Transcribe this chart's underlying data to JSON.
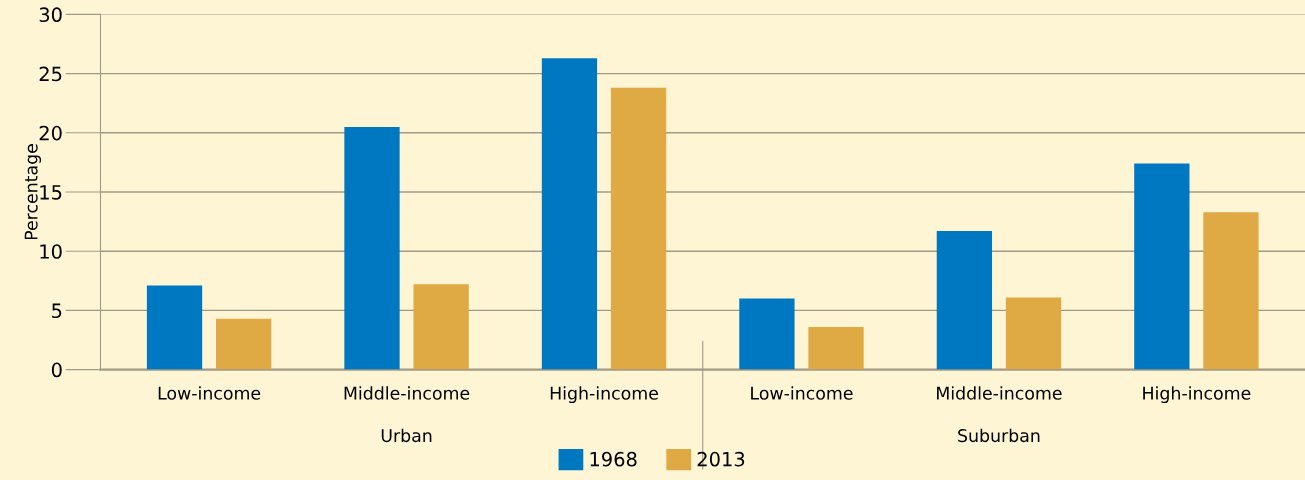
{
  "chart_data": {
    "type": "bar",
    "ylabel": "Percentage",
    "categories": [
      "Low-income",
      "Middle-income",
      "High-income",
      "Low-income",
      "Middle-income",
      "High-income"
    ],
    "series": [
      {
        "name": "1968",
        "color": "#0078c1",
        "values": [
          7.1,
          20.5,
          26.3,
          6.0,
          11.7,
          17.4
        ]
      },
      {
        "name": "2013",
        "color": "#dfa944",
        "values": [
          4.3,
          7.2,
          23.8,
          3.6,
          6.1,
          13.3
        ]
      }
    ],
    "annotations": [
      "Urban",
      "Suburban"
    ],
    "ylim": [
      0,
      30
    ],
    "yticks": [
      0,
      5,
      10,
      15,
      20,
      25,
      30
    ],
    "grid": "y",
    "legend": "bottom"
  }
}
